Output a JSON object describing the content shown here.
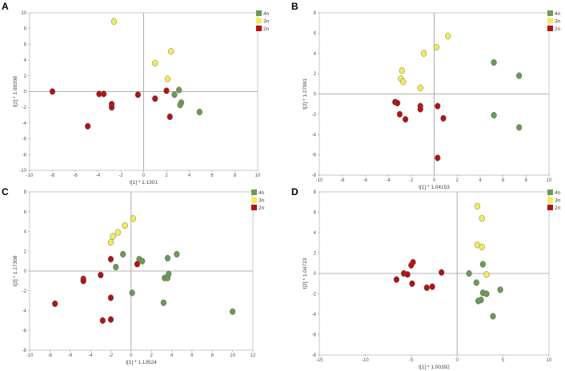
{
  "chart_data": [
    {
      "type": "scatter",
      "panel_label": "A",
      "title": "",
      "xlabel": "t[1] * 1.1301",
      "ylabel": "t[2] * 1.09208",
      "xlim": [
        -10,
        10
      ],
      "ylim": [
        -10,
        10
      ],
      "xticks": [
        -10,
        -8,
        -6,
        -4,
        -2,
        0,
        2,
        4,
        6,
        8,
        10
      ],
      "yticks": [
        -10,
        -8,
        -6,
        -4,
        -2,
        0,
        2,
        4,
        6,
        8,
        10
      ],
      "grid": false,
      "legend": "top-right",
      "series": [
        {
          "name": "4n",
          "color": "#6a9a55",
          "points": [
            [
              3.1,
              0.2
            ],
            [
              3.3,
              -1.4
            ],
            [
              3.2,
              -1.7
            ],
            [
              2.7,
              -0.4
            ],
            [
              4.9,
              -2.6
            ]
          ]
        },
        {
          "name": "3n",
          "color": "#f2ed55",
          "points": [
            [
              -2.6,
              8.9
            ],
            [
              2.4,
              5.1
            ],
            [
              1.0,
              3.6
            ],
            [
              2.1,
              1.6
            ]
          ]
        },
        {
          "name": "2n",
          "color": "#b01313",
          "points": [
            [
              -8.0,
              0.0
            ],
            [
              -3.9,
              -0.3
            ],
            [
              -3.5,
              -0.3
            ],
            [
              -2.8,
              -1.6
            ],
            [
              -2.8,
              -2.0
            ],
            [
              -4.9,
              -4.4
            ],
            [
              -0.5,
              -0.4
            ],
            [
              1.0,
              -0.9
            ],
            [
              2.0,
              0.1
            ],
            [
              2.3,
              -3.2
            ]
          ]
        }
      ]
    },
    {
      "type": "scatter",
      "panel_label": "B",
      "title": "",
      "xlabel": "t[1] * 1.04153",
      "ylabel": "t[2] * 1.27991",
      "xlim": [
        -10,
        10
      ],
      "ylim": [
        -8,
        8
      ],
      "xticks": [
        -10,
        -8,
        -6,
        -4,
        -2,
        0,
        2,
        4,
        6,
        8,
        10
      ],
      "yticks": [
        -8,
        -6,
        -4,
        -2,
        0,
        2,
        4,
        6,
        8
      ],
      "grid": false,
      "legend": "top-right",
      "series": [
        {
          "name": "4n",
          "color": "#6a9a55",
          "points": [
            [
              5.2,
              3.1
            ],
            [
              7.4,
              1.8
            ],
            [
              5.2,
              -2.1
            ],
            [
              7.4,
              -3.3
            ]
          ]
        },
        {
          "name": "3n",
          "color": "#f2ed55",
          "points": [
            [
              1.2,
              5.7
            ],
            [
              0.2,
              4.6
            ],
            [
              -0.9,
              4.0
            ],
            [
              -2.8,
              2.3
            ],
            [
              -2.9,
              1.5
            ],
            [
              -2.7,
              1.2
            ],
            [
              -1.2,
              0.6
            ]
          ]
        },
        {
          "name": "2n",
          "color": "#b01313",
          "points": [
            [
              -3.4,
              -0.8
            ],
            [
              -3.2,
              -0.9
            ],
            [
              -1.2,
              -1.2
            ],
            [
              -1.2,
              -1.5
            ],
            [
              -3.0,
              -2.0
            ],
            [
              -2.5,
              -2.5
            ],
            [
              0.3,
              -1.2
            ],
            [
              0.8,
              -2.4
            ],
            [
              0.3,
              -6.3
            ]
          ]
        }
      ]
    },
    {
      "type": "scatter",
      "panel_label": "C",
      "title": "",
      "xlabel": "t[1] * 1.13524",
      "ylabel": "t[2] * 1.17308",
      "xlim": [
        -10,
        12
      ],
      "ylim": [
        -8,
        8
      ],
      "xticks": [
        -10,
        -8,
        -6,
        -4,
        -2,
        0,
        2,
        4,
        6,
        8,
        10,
        12
      ],
      "yticks": [
        -8,
        -6,
        -4,
        -2,
        0,
        2,
        4,
        6,
        8
      ],
      "grid": false,
      "legend": "top-right",
      "series": [
        {
          "name": "4n",
          "color": "#6a9a55",
          "points": [
            [
              -0.8,
              1.7
            ],
            [
              -1.5,
              0.4
            ],
            [
              0.8,
              1.2
            ],
            [
              1.1,
              1.0
            ],
            [
              3.6,
              1.3
            ],
            [
              4.5,
              1.7
            ],
            [
              3.3,
              -0.7
            ],
            [
              3.6,
              -0.7
            ],
            [
              3.7,
              -0.3
            ],
            [
              0.1,
              -2.2
            ],
            [
              3.2,
              -3.2
            ],
            [
              10.0,
              -4.1
            ]
          ]
        },
        {
          "name": "3n",
          "color": "#f2ed55",
          "points": [
            [
              0.2,
              5.3
            ],
            [
              -0.6,
              4.6
            ],
            [
              -1.3,
              3.9
            ],
            [
              -1.8,
              3.5
            ],
            [
              -2.0,
              2.9
            ]
          ]
        },
        {
          "name": "2n",
          "color": "#b01313",
          "points": [
            [
              -2.0,
              1.2
            ],
            [
              -3.0,
              -0.4
            ],
            [
              -4.7,
              -0.8
            ],
            [
              -4.7,
              -1.0
            ],
            [
              0.6,
              0.7
            ],
            [
              -2.0,
              -2.7
            ],
            [
              -7.5,
              -3.3
            ],
            [
              -2.8,
              -5.0
            ],
            [
              -2.0,
              -4.9
            ]
          ]
        }
      ]
    },
    {
      "type": "scatter",
      "panel_label": "D",
      "title": "",
      "xlabel": "t[1] * 1.00392",
      "ylabel": "t[2] * 1.04723",
      "xlim": [
        -15,
        10
      ],
      "ylim": [
        -8,
        8
      ],
      "xticks": [
        -15,
        -10,
        -5,
        0,
        5,
        10
      ],
      "yticks": [
        -8,
        -6,
        -4,
        -2,
        0,
        2,
        4,
        6,
        8
      ],
      "grid": false,
      "legend": "top-right",
      "series": [
        {
          "name": "4n",
          "color": "#6a9a55",
          "points": [
            [
              2.8,
              0.9
            ],
            [
              1.3,
              0.0
            ],
            [
              2.1,
              -0.9
            ],
            [
              2.8,
              -1.9
            ],
            [
              3.2,
              -2.0
            ],
            [
              4.7,
              -1.6
            ],
            [
              2.6,
              -2.6
            ],
            [
              2.3,
              -2.7
            ],
            [
              3.9,
              -4.2
            ]
          ]
        },
        {
          "name": "3n",
          "color": "#f2ed55",
          "points": [
            [
              2.2,
              6.6
            ],
            [
              2.7,
              5.4
            ],
            [
              2.2,
              2.8
            ],
            [
              2.7,
              2.6
            ],
            [
              3.2,
              -0.1
            ]
          ]
        },
        {
          "name": "2n",
          "color": "#b01313",
          "points": [
            [
              -4.8,
              1.1
            ],
            [
              -5.0,
              0.8
            ],
            [
              -6.6,
              -0.6
            ],
            [
              -5.8,
              0.0
            ],
            [
              -5.4,
              -0.1
            ],
            [
              -4.9,
              -1.0
            ],
            [
              -3.3,
              -1.4
            ],
            [
              -2.7,
              -1.3
            ],
            [
              -1.7,
              0.1
            ]
          ]
        }
      ]
    }
  ]
}
